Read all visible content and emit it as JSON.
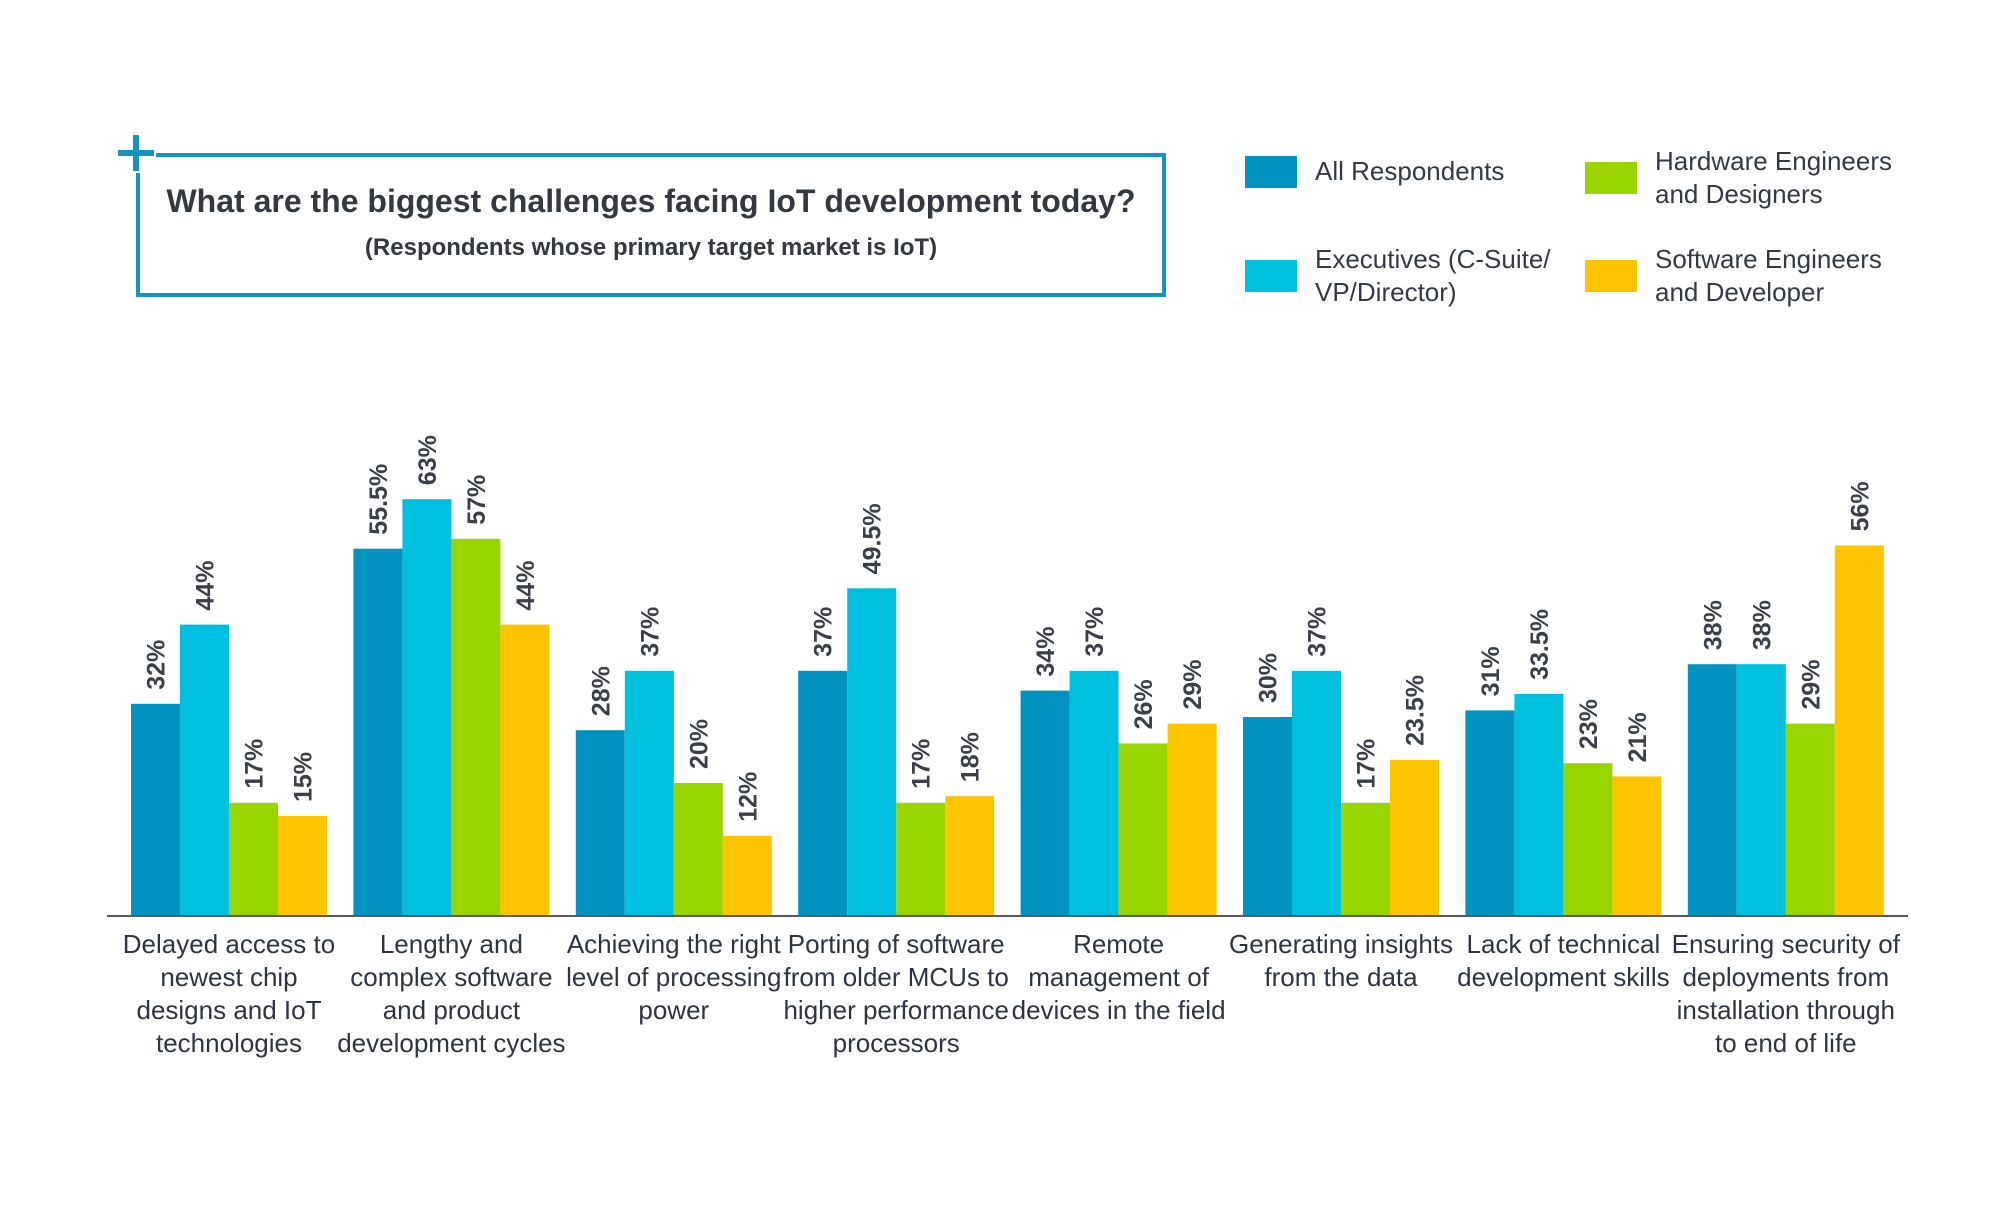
{
  "header": {
    "title": "What are the biggest challenges facing IoT development today?",
    "subtitle": "(Respondents whose primary target market is IoT)"
  },
  "legend": [
    {
      "label": "All Respondents",
      "color": "#0293c0"
    },
    {
      "label": "Hardware Engineers and Designers",
      "color": "#99d500"
    },
    {
      "label": "Executives (C-Suite/ VP/Director)",
      "color": "#00c0e0"
    },
    {
      "label": "Software Engineers and Developer",
      "color": "#ffc400"
    }
  ],
  "chart_data": {
    "type": "bar",
    "title": "What are the biggest challenges facing IoT development today?",
    "subtitle": "(Respondents whose primary target market is IoT)",
    "categories": [
      "Delayed access to newest chip designs and IoT technologies",
      "Lengthy and complex software and product development cycles",
      "Achieving the right level of processing power",
      "Porting of software from older MCUs to higher performance processors",
      "Remote management of devices in the field",
      "Generating insights from the data",
      "Lack of technical development skills",
      "Ensuring security of deployments from installation through to end of life"
    ],
    "series": [
      {
        "name": "All Respondents",
        "color": "#0293c0",
        "values": [
          32,
          55.5,
          28,
          37,
          34,
          30,
          31,
          38
        ],
        "labels": [
          "32%",
          "55.5%",
          "28%",
          "37%",
          "34%",
          "30%",
          "31%",
          "38%"
        ]
      },
      {
        "name": "Executives (C-Suite/ VP/Director)",
        "color": "#00c0e0",
        "values": [
          44,
          63,
          37,
          49.5,
          37,
          37,
          33.5,
          38
        ],
        "labels": [
          "44%",
          "63%",
          "37%",
          "49.5%",
          "37%",
          "37%",
          "33.5%",
          "38%"
        ]
      },
      {
        "name": "Hardware Engineers and Designers",
        "color": "#99d500",
        "values": [
          17,
          57,
          20,
          17,
          26,
          17,
          23,
          29
        ],
        "labels": [
          "17%",
          "57%",
          "20%",
          "17%",
          "26%",
          "17%",
          "23%",
          "29%"
        ]
      },
      {
        "name": "Software Engineers and Developer",
        "color": "#ffc400",
        "values": [
          15,
          44,
          12,
          18,
          29,
          23.5,
          21,
          56
        ],
        "labels": [
          "15%",
          "44%",
          "12%",
          "18%",
          "29%",
          "23.5%",
          "21%",
          "56%"
        ]
      }
    ],
    "ylim": [
      0,
      70
    ],
    "grid": false,
    "legend_position": "top-right"
  }
}
